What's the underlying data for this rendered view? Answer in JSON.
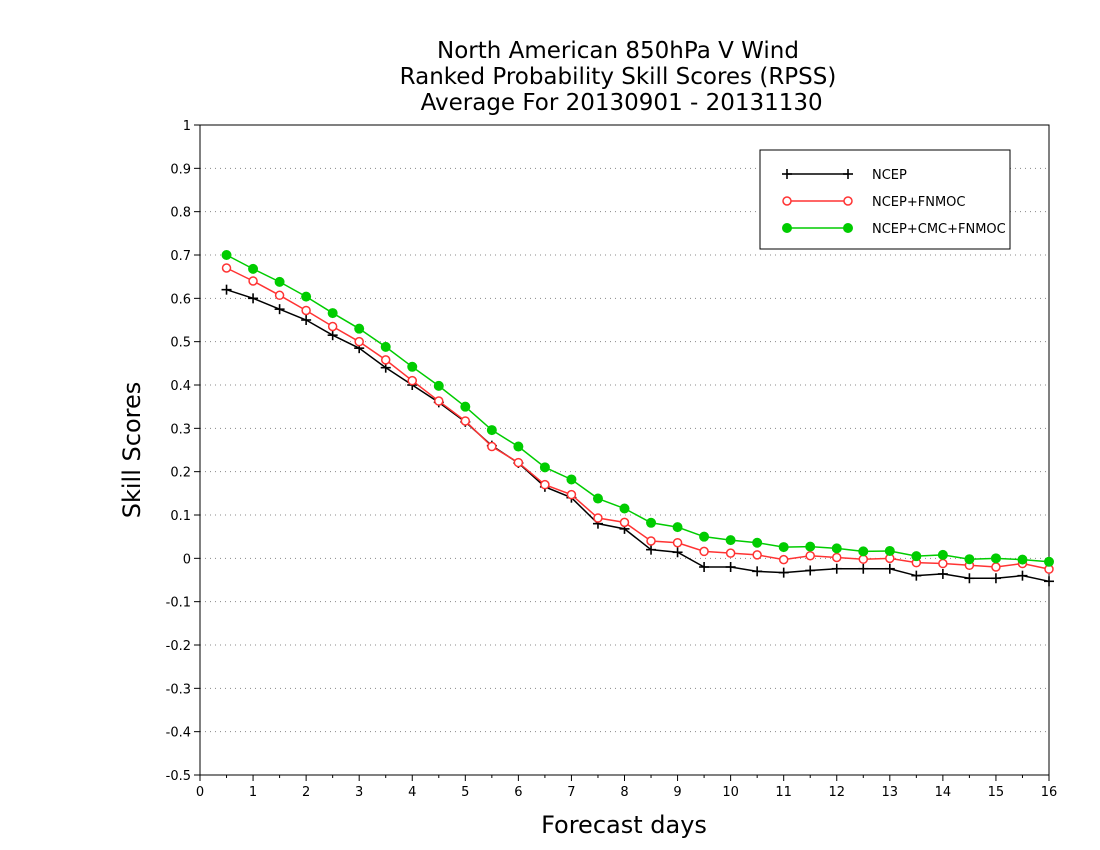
{
  "chart_data": {
    "type": "line",
    "title_lines": [
      "North American 850hPa V Wind",
      "Ranked Probability Skill Scores (RPSS)",
      " Average For 20130901 - 20131130"
    ],
    "xlabel": "Forecast days",
    "ylabel": "Skill Scores",
    "xlim": [
      0,
      16
    ],
    "ylim": [
      -0.5,
      1
    ],
    "x_ticks": [
      0,
      1,
      2,
      3,
      4,
      5,
      6,
      7,
      8,
      9,
      10,
      11,
      12,
      13,
      14,
      15,
      16
    ],
    "y_ticks": [
      -0.5,
      -0.4,
      -0.3,
      -0.2,
      -0.1,
      0,
      0.1,
      0.2,
      0.3,
      0.4,
      0.5,
      0.6,
      0.7,
      0.8,
      0.9,
      1
    ],
    "y_tick_labels": [
      "-0.5",
      "-0.4",
      "-0.3",
      "-0.2",
      "-0.1",
      "0",
      "0.1",
      "0.2",
      "0.3",
      "0.4",
      "0.5",
      "0.6",
      "0.7",
      "0.8",
      "0.9",
      "1"
    ],
    "grid": "horizontal-dotted",
    "legend_position": "top-right",
    "x": [
      0.5,
      1,
      1.5,
      2,
      2.5,
      3,
      3.5,
      4,
      4.5,
      5,
      5.5,
      6,
      6.5,
      7,
      7.5,
      8,
      8.5,
      9,
      9.5,
      10,
      10.5,
      11,
      11.5,
      12,
      12.5,
      13,
      13.5,
      14,
      14.5,
      15,
      15.5,
      16
    ],
    "series": [
      {
        "name": "NCEP",
        "color": "#000000",
        "marker": "plus",
        "values": [
          0.62,
          0.6,
          0.575,
          0.55,
          0.515,
          0.485,
          0.44,
          0.4,
          0.36,
          0.315,
          0.26,
          0.22,
          0.165,
          0.14,
          0.08,
          0.068,
          0.02,
          0.014,
          -0.02,
          -0.02,
          -0.03,
          -0.033,
          -0.028,
          -0.024,
          -0.024,
          -0.024,
          -0.04,
          -0.036,
          -0.046,
          -0.046,
          -0.04,
          -0.053
        ]
      },
      {
        "name": "NCEP+FNMOC",
        "color": "#ff3333",
        "marker": "open-circle",
        "values": [
          0.67,
          0.64,
          0.607,
          0.572,
          0.535,
          0.5,
          0.458,
          0.41,
          0.363,
          0.317,
          0.258,
          0.221,
          0.17,
          0.147,
          0.093,
          0.083,
          0.04,
          0.036,
          0.016,
          0.012,
          0.008,
          -0.003,
          0.006,
          0.002,
          -0.002,
          0.0,
          -0.01,
          -0.012,
          -0.016,
          -0.02,
          -0.012,
          -0.025
        ]
      },
      {
        "name": "NCEP+CMC+FNMOC",
        "color": "#00cc00",
        "marker": "filled-circle",
        "values": [
          0.7,
          0.668,
          0.638,
          0.604,
          0.566,
          0.53,
          0.488,
          0.442,
          0.398,
          0.35,
          0.296,
          0.258,
          0.21,
          0.182,
          0.138,
          0.115,
          0.082,
          0.072,
          0.05,
          0.042,
          0.036,
          0.026,
          0.027,
          0.023,
          0.016,
          0.017,
          0.005,
          0.008,
          -0.002,
          0.0,
          -0.003,
          -0.008
        ]
      }
    ]
  }
}
